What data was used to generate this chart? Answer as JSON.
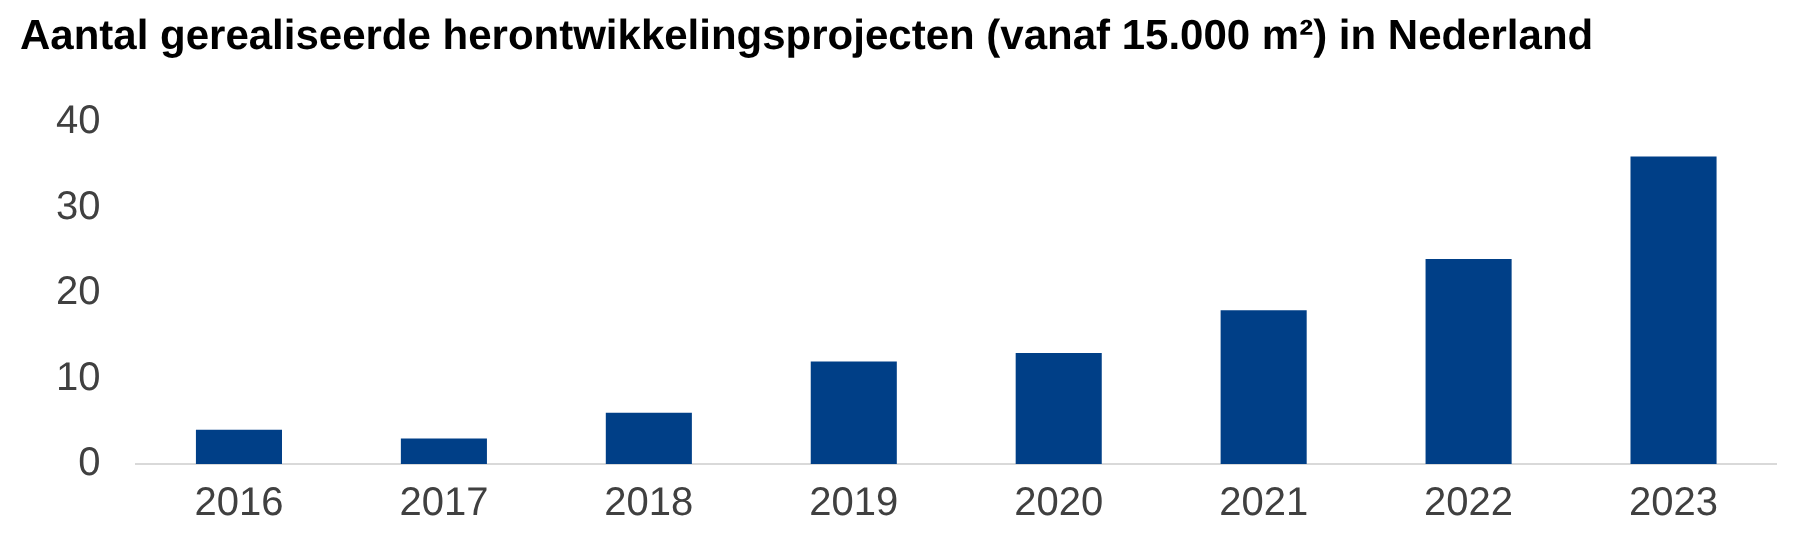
{
  "chart_data": {
    "type": "bar",
    "title": "Aantal gerealiseerde herontwikkelingsprojecten (vanaf 15.000 m²) in Nederland",
    "categories": [
      "2016",
      "2017",
      "2018",
      "2019",
      "2020",
      "2021",
      "2022",
      "2023"
    ],
    "values": [
      4,
      3,
      6,
      12,
      13,
      18,
      24,
      36
    ],
    "color": "#003f87",
    "ylim": [
      0,
      40
    ],
    "yticks": [
      0,
      10,
      20,
      30,
      40
    ],
    "grid": false,
    "legend": false
  }
}
